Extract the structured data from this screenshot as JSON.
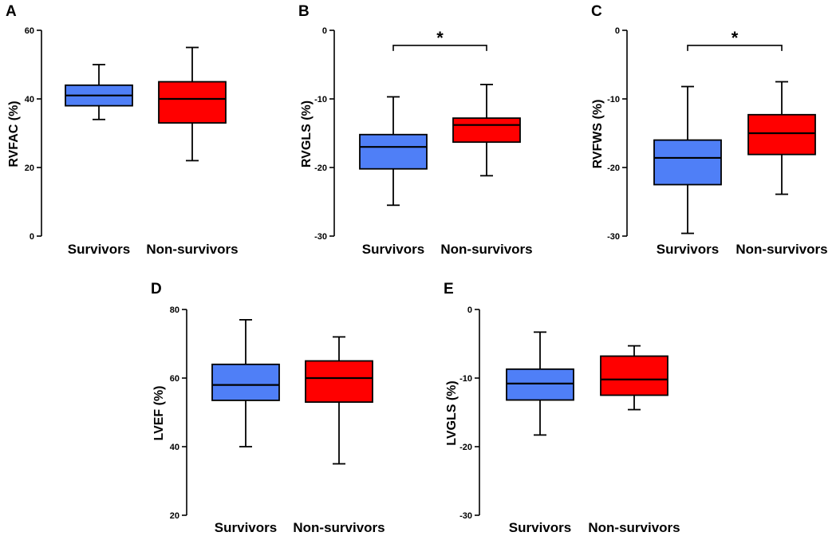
{
  "colors": {
    "survivors": "#4f7ff7",
    "non_survivors": "#ff0000",
    "line": "#000000"
  },
  "chart_data": [
    {
      "type": "box",
      "panel_letter": "A",
      "ylabel": "RVFAC (%)",
      "ylim": [
        0,
        60
      ],
      "yticks": [
        0,
        20,
        40,
        60
      ],
      "ytick_labels": [
        "0",
        "20",
        "40",
        "60"
      ],
      "categories": [
        "Survivors",
        "Non-survivors"
      ],
      "series": [
        {
          "name": "Survivors",
          "min": 34,
          "q1": 38,
          "median": 41,
          "q3": 44,
          "max": 50
        },
        {
          "name": "Non-survivors",
          "min": 22,
          "q1": 33,
          "median": 40,
          "q3": 45,
          "max": 55
        }
      ],
      "significance": null
    },
    {
      "type": "box",
      "panel_letter": "B",
      "ylabel": "RVGLS (%)",
      "ylim": [
        -30,
        0
      ],
      "yticks": [
        0,
        -10,
        -20,
        -30
      ],
      "ytick_labels": [
        "0",
        "-10",
        "-20",
        "-30"
      ],
      "categories": [
        "Survivors",
        "Non-survivors"
      ],
      "series": [
        {
          "name": "Survivors",
          "min": -25.5,
          "q1": -20.2,
          "median": -17.0,
          "q3": -15.2,
          "max": -9.7
        },
        {
          "name": "Non-survivors",
          "min": -21.2,
          "q1": -16.3,
          "median": -13.8,
          "q3": -12.8,
          "max": -7.9
        }
      ],
      "significance": {
        "label": "*",
        "y": -2.2
      }
    },
    {
      "type": "box",
      "panel_letter": "C",
      "ylabel": "RVFWS (%)",
      "ylim": [
        -30,
        0
      ],
      "yticks": [
        0,
        -10,
        -20,
        -30
      ],
      "ytick_labels": [
        "0",
        "-10",
        "-20",
        "-30"
      ],
      "categories": [
        "Survivors",
        "Non-survivors"
      ],
      "series": [
        {
          "name": "Survivors",
          "min": -29.6,
          "q1": -22.5,
          "median": -18.6,
          "q3": -16.0,
          "max": -8.2
        },
        {
          "name": "Non-survivors",
          "min": -23.9,
          "q1": -18.1,
          "median": -15.0,
          "q3": -12.3,
          "max": -7.5
        }
      ],
      "significance": {
        "label": "*",
        "y": -2.2
      }
    },
    {
      "type": "box",
      "panel_letter": "D",
      "ylabel": "LVEF (%)",
      "ylim": [
        20,
        80
      ],
      "yticks": [
        20,
        40,
        60,
        80
      ],
      "ytick_labels": [
        "20",
        "40",
        "60",
        "80"
      ],
      "categories": [
        "Survivors",
        "Non-survivors"
      ],
      "series": [
        {
          "name": "Survivors",
          "min": 40,
          "q1": 53.5,
          "median": 58,
          "q3": 64,
          "max": 77
        },
        {
          "name": "Non-survivors",
          "min": 35,
          "q1": 53,
          "median": 60,
          "q3": 65,
          "max": 72
        }
      ],
      "significance": null
    },
    {
      "type": "box",
      "panel_letter": "E",
      "ylabel": "LVGLS (%)",
      "ylim": [
        -30,
        0
      ],
      "yticks": [
        0,
        -10,
        -20,
        -30
      ],
      "ytick_labels": [
        "0",
        "-10",
        "-20",
        "-30"
      ],
      "categories": [
        "Survivors",
        "Non-survivors"
      ],
      "series": [
        {
          "name": "Survivors",
          "min": -18.3,
          "q1": -13.2,
          "median": -10.8,
          "q3": -8.7,
          "max": -3.3
        },
        {
          "name": "Non-survivors",
          "min": -14.6,
          "q1": -12.5,
          "median": -10.2,
          "q3": -6.8,
          "max": -5.3
        }
      ],
      "significance": null
    }
  ]
}
